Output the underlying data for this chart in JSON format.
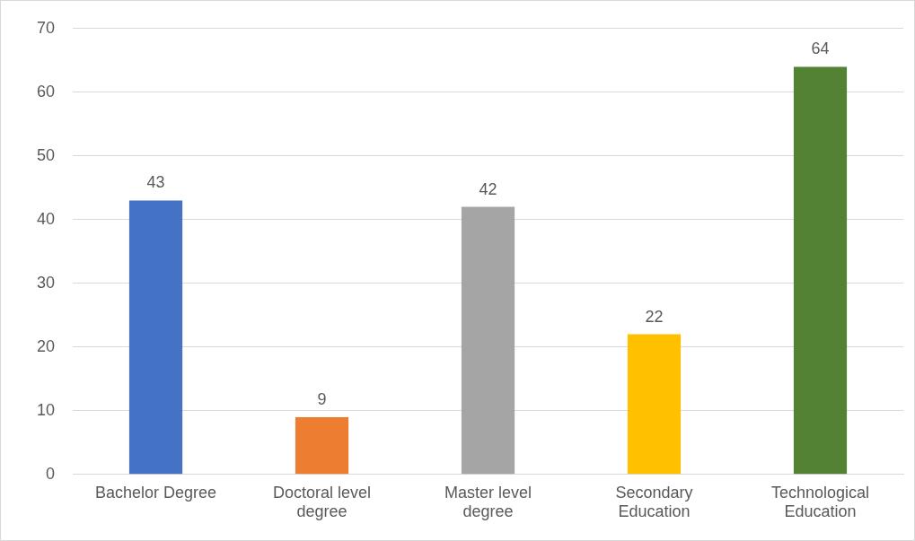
{
  "chart_data": {
    "type": "bar",
    "categories": [
      "Bachelor Degree",
      "Doctoral level degree",
      "Master level degree",
      "Secondary Education",
      "Technological Education"
    ],
    "values": [
      43,
      9,
      42,
      22,
      64
    ],
    "colors": [
      "#4472c4",
      "#ed7d31",
      "#a5a5a5",
      "#ffc000",
      "#548235"
    ],
    "ylim": [
      0,
      70
    ],
    "yticks": [
      0,
      10,
      20,
      30,
      40,
      50,
      60,
      70
    ],
    "grid": "y",
    "data_labels": true,
    "legend": false
  }
}
